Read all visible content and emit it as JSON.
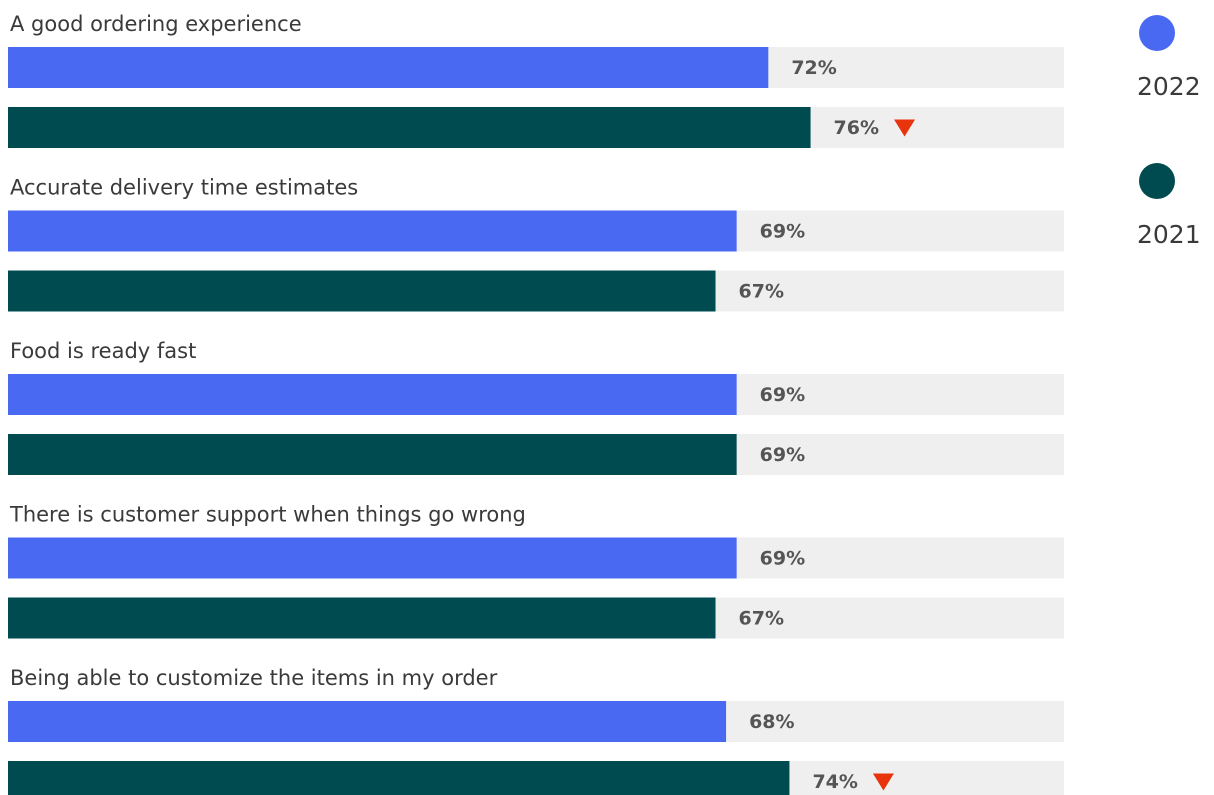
{
  "chart_data": {
    "type": "hbar_grouped",
    "categories": [
      "A good ordering experience",
      "Accurate delivery time estimates",
      "Food is ready fast",
      "There is customer support when things go wrong",
      "Being able to customize the items in my order"
    ],
    "series": [
      {
        "name": "2022",
        "color": "#4a69f3",
        "values": [
          72,
          69,
          69,
          69,
          68
        ],
        "value_labels": [
          "72%",
          "69%",
          "69%",
          "69%",
          "68%"
        ]
      },
      {
        "name": "2021",
        "color": "#004b50",
        "values": [
          76,
          67,
          69,
          67,
          74
        ],
        "value_labels": [
          "76%",
          "67%",
          "69%",
          "67%",
          "74%"
        ]
      }
    ],
    "xlim": [
      0,
      100
    ],
    "track_color": "#efefef",
    "marker_color": "#e8340c",
    "legend": "right"
  }
}
